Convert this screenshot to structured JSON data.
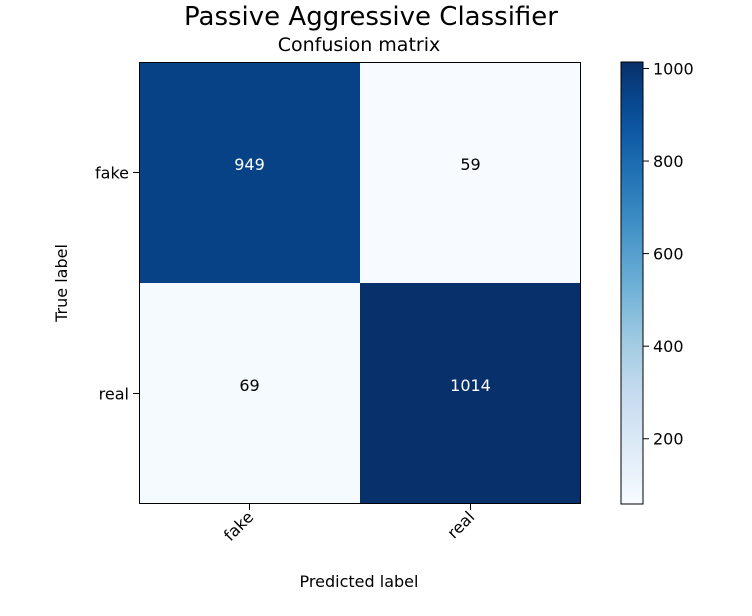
{
  "chart_data": {
    "type": "heatmap",
    "suptitle": "Passive Aggressive Classifier",
    "title": "Confusion matrix",
    "xlabel": "Predicted label",
    "ylabel": "True label",
    "x_categories": [
      "fake",
      "real"
    ],
    "y_categories": [
      "fake",
      "real"
    ],
    "values": [
      [
        949,
        59
      ],
      [
        69,
        1014
      ]
    ],
    "colormap": "Blues",
    "vmin": 59,
    "vmax": 1014,
    "colorbar_ticks": [
      200,
      400,
      600,
      800,
      1000
    ]
  }
}
